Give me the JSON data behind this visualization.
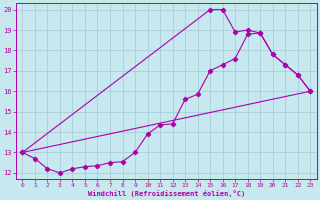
{
  "xlabel": "Windchill (Refroidissement éolien,°C)",
  "xlim": [
    -0.5,
    23.5
  ],
  "ylim": [
    11.7,
    20.3
  ],
  "xticks": [
    0,
    1,
    2,
    3,
    4,
    5,
    6,
    7,
    8,
    9,
    10,
    11,
    12,
    13,
    14,
    15,
    16,
    17,
    18,
    19,
    20,
    21,
    22,
    23
  ],
  "yticks": [
    12,
    13,
    14,
    15,
    16,
    17,
    18,
    19,
    20
  ],
  "bg_color": "#c8e8f0",
  "line_color": "#aa00aa",
  "grid_color": "#a0c8d8",
  "line1_x": [
    0,
    1,
    2,
    3,
    4,
    5,
    6,
    7,
    8,
    9,
    10,
    11,
    12,
    13,
    14,
    15,
    16,
    17,
    18,
    19,
    20,
    21,
    22,
    23
  ],
  "line1_y": [
    13.0,
    12.7,
    12.2,
    12.0,
    12.2,
    12.3,
    12.35,
    12.5,
    12.55,
    13.0,
    13.9,
    14.35,
    14.4,
    15.6,
    15.85,
    17.0,
    17.3,
    17.6,
    18.8,
    18.85,
    17.8,
    17.3,
    16.8,
    16.0
  ],
  "line2_x": [
    0,
    23
  ],
  "line2_y": [
    13.0,
    16.0
  ],
  "line3_x": [
    0,
    15,
    16,
    17,
    18,
    19,
    20,
    21,
    22,
    23
  ],
  "line3_y": [
    13.0,
    20.0,
    20.0,
    18.9,
    19.0,
    18.85,
    17.8,
    17.3,
    16.8,
    16.0
  ],
  "marker": "D",
  "markersize": 2.2,
  "linewidth": 0.8
}
